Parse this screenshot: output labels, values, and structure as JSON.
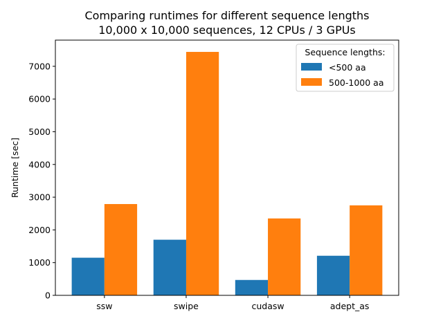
{
  "chart_data": {
    "type": "bar",
    "title": "Comparing runtimes for different sequence lengths",
    "subtitle": "10,000 x 10,000 sequences, 12 CPUs / 3 GPUs",
    "xlabel": "",
    "ylabel": "Runtime [sec]",
    "categories": [
      "ssw",
      "swipe",
      "cudasw",
      "adept_as"
    ],
    "series": [
      {
        "name": "<500 aa",
        "color": "#1f77b4",
        "values": [
          1150,
          1700,
          470,
          1210
        ]
      },
      {
        "name": "500-1000 aa",
        "color": "#ff7f0e",
        "values": [
          2790,
          7440,
          2350,
          2750
        ]
      }
    ],
    "ylim": [
      0,
      7800
    ],
    "yticks": [
      0,
      1000,
      2000,
      3000,
      4000,
      5000,
      6000,
      7000
    ],
    "grid": false,
    "legend": {
      "title": "Sequence lengths:",
      "placement": "top-right"
    }
  }
}
